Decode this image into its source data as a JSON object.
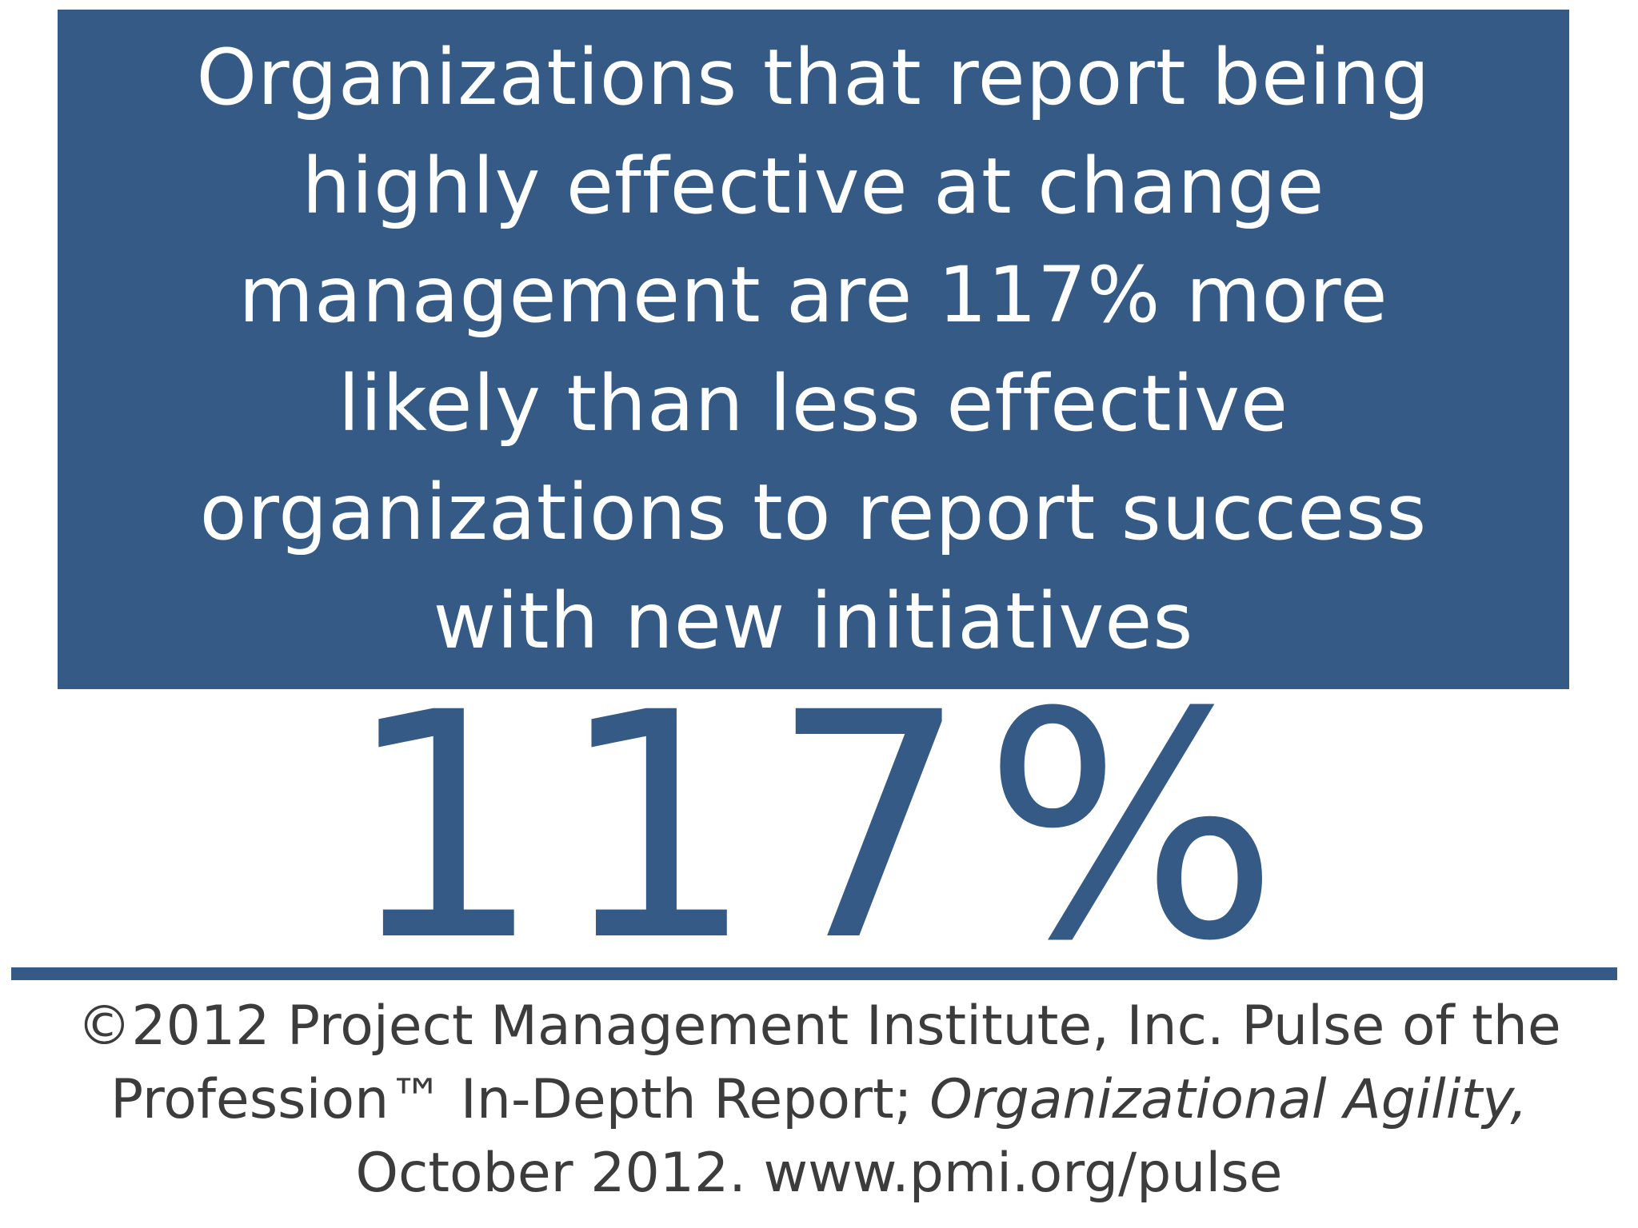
{
  "headline": {
    "lines": [
      "Organizations that report being",
      "highly effective at change",
      "management are 117% more",
      "likely than less effective",
      "organizations to report success",
      "with new initiatives"
    ]
  },
  "stat": {
    "value": "117%"
  },
  "source": {
    "line1": "©2012 Project Management Institute, Inc. Pulse of the",
    "line2_plain": "Profession™ In-Depth Report; ",
    "line2_italic": "Organizational Agility,",
    "line3": "October 2012. www.pmi.org/pulse"
  },
  "colors": {
    "brand_blue": "#355a86",
    "text_white": "#ffffff",
    "source_gray": "#3c3c3c"
  }
}
